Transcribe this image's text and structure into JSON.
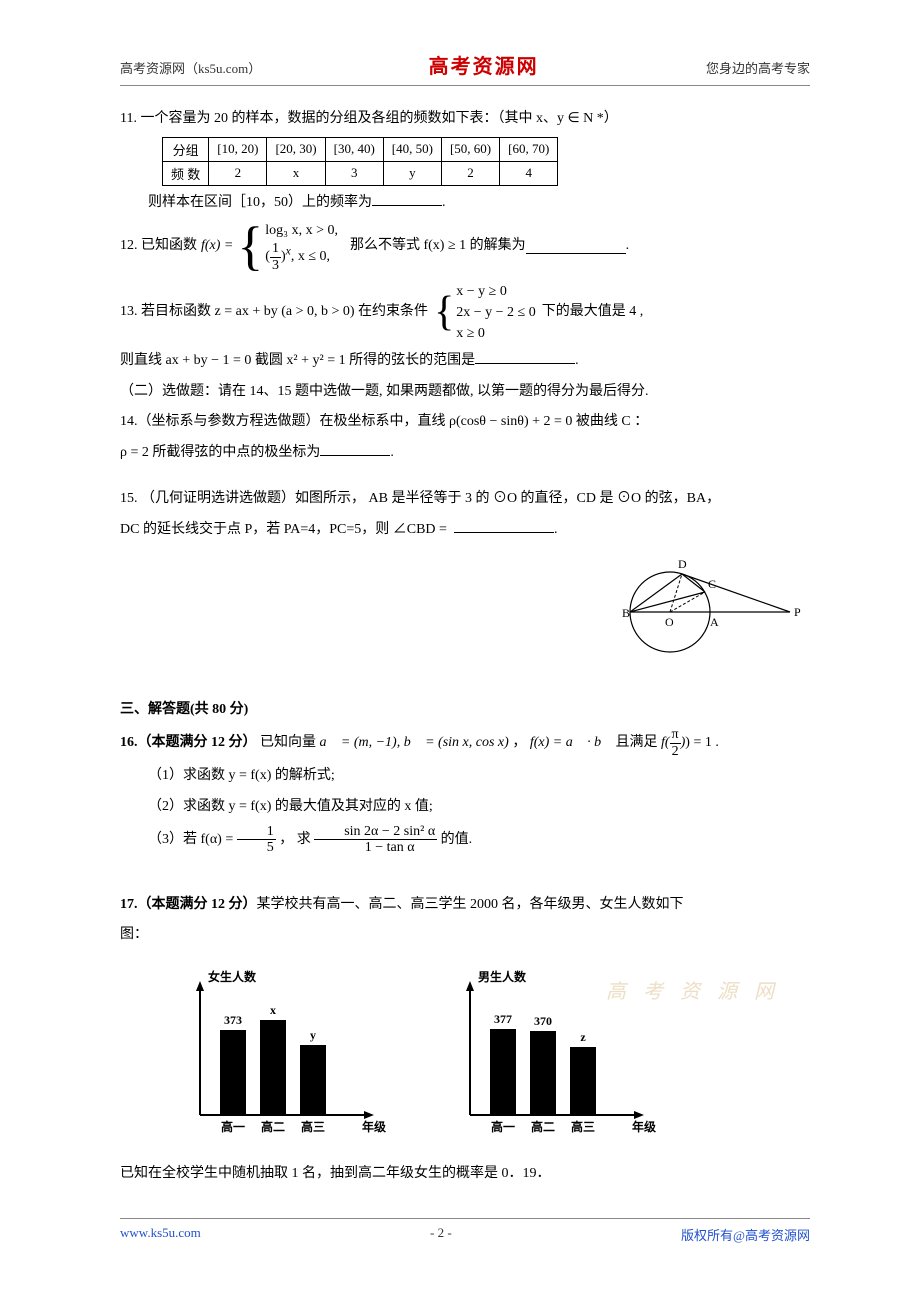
{
  "header": {
    "left": "高考资源网（ks5u.com）",
    "center": "高考资源网",
    "right": "您身边的高考专家"
  },
  "q11": {
    "lead": "11. 一个容量为 20 的样本，数据的分组及各组的频数如下表：（其中 x、y ∈ N *）",
    "table": {
      "head": [
        "分组",
        "[10, 20)",
        "[20, 30)",
        "[30, 40)",
        "[40, 50)",
        "[50, 60)",
        "[60, 70)"
      ],
      "row_label": "频 数",
      "cells": [
        "2",
        "x",
        "3",
        "y",
        "2",
        "4"
      ]
    },
    "tail": "则样本在区间［10，50）上的频率为",
    "dot": "."
  },
  "q12": {
    "lead": "12. 已知函数 ",
    "fx": "f(x) =",
    "case1": "log₃ x, x > 0,",
    "case2_base": "1",
    "case2_denom": "3",
    "case2_tail": ", x ≤ 0,",
    "mid": "那么不等式 f(x) ≥ 1 的解集为",
    "dot": "."
  },
  "q13": {
    "lead": "13. 若目标函数 z = ax + by (a > 0, b > 0) 在约束条件",
    "c1": "x − y ≥ 0",
    "c2": "2x − y − 2 ≤ 0",
    "c3": "x ≥ 0",
    "tail1": "下的最大值是 4 ,",
    "line2a": "则直线 ax + by − 1 = 0 截圆 x² + y² = 1 所得的弦长的范围是",
    "dot": "."
  },
  "opt_header": "（二）选做题：请在 14、15 题中选做一题, 如果两题都做, 以第一题的得分为最后得分.",
  "q14": {
    "lead": "14.（坐标系与参数方程选做题）在极坐标系中，直线 ρ(cosθ − sinθ) + 2 = 0 被曲线 C ：",
    "line2": "ρ = 2 所截得弦的中点的极坐标为",
    "dot": "."
  },
  "q15": {
    "lead": "15. （几何证明选讲选做题）如图所示， AB 是半径等于 3 的 ⊙O 的直径，CD 是 ⊙O 的弦，BA，",
    "line2a": "DC 的延长线交于点 P，若 PA=4，PC=5，则 ∠CBD = ",
    "dot": "."
  },
  "circle_fig": {
    "labels": {
      "B": "B",
      "O": "O",
      "A": "A",
      "P": "P",
      "C": "C",
      "D": "D"
    }
  },
  "section3": "三、解答题(共 80 分)",
  "q16": {
    "lead": "16.（本题满分 12 分） 已知向量 a⃗ = (m, −1), b⃗ = (sin x, cos x) ，  f(x) = a⃗ · b⃗ 且满足 f(",
    "pi2_n": "π",
    "pi2_d": "2",
    "lead_end": ") = 1 .",
    "p1": "（1）求函数 y = f(x) 的解析式;",
    "p2": "（2）求函数 y = f(x) 的最大值及其对应的 x 值;",
    "p3a": "（3）若 f(α) = ",
    "p3_frac1_n": "1",
    "p3_frac1_d": "5",
    "p3_mid": " ，  求 ",
    "p3_frac2_n": "sin 2α − 2 sin² α",
    "p3_frac2_d": "1 − tan α",
    "p3_end": " 的值."
  },
  "q17": {
    "lead": "17.（本题满分 12 分）某学校共有高一、高二、高三学生 2000 名，各年级男、女生人数如下",
    "lead2": "图：",
    "chart_left": {
      "ylabel": "女生人数",
      "xlabel": "年级",
      "cats": [
        "高一",
        "高二",
        "高三"
      ],
      "value_labels": [
        "373",
        "x",
        "y"
      ],
      "heights": [
        85,
        95,
        70
      ],
      "bar_color": "#000000",
      "axis_color": "#000000"
    },
    "chart_right": {
      "ylabel": "男生人数",
      "xlabel": "年级",
      "cats": [
        "高一",
        "高二",
        "高三"
      ],
      "value_labels": [
        "377",
        "370",
        "z"
      ],
      "heights": [
        86,
        84,
        68
      ],
      "bar_color": "#000000",
      "axis_color": "#000000"
    },
    "tail": "已知在全校学生中随机抽取 1 名，抽到高二年级女生的概率是 0．19．"
  },
  "watermark": "高 考 资 源 网",
  "footer": {
    "left": "www.ks5u.com",
    "center": "- 2 -",
    "right": "版权所有@高考资源网"
  }
}
